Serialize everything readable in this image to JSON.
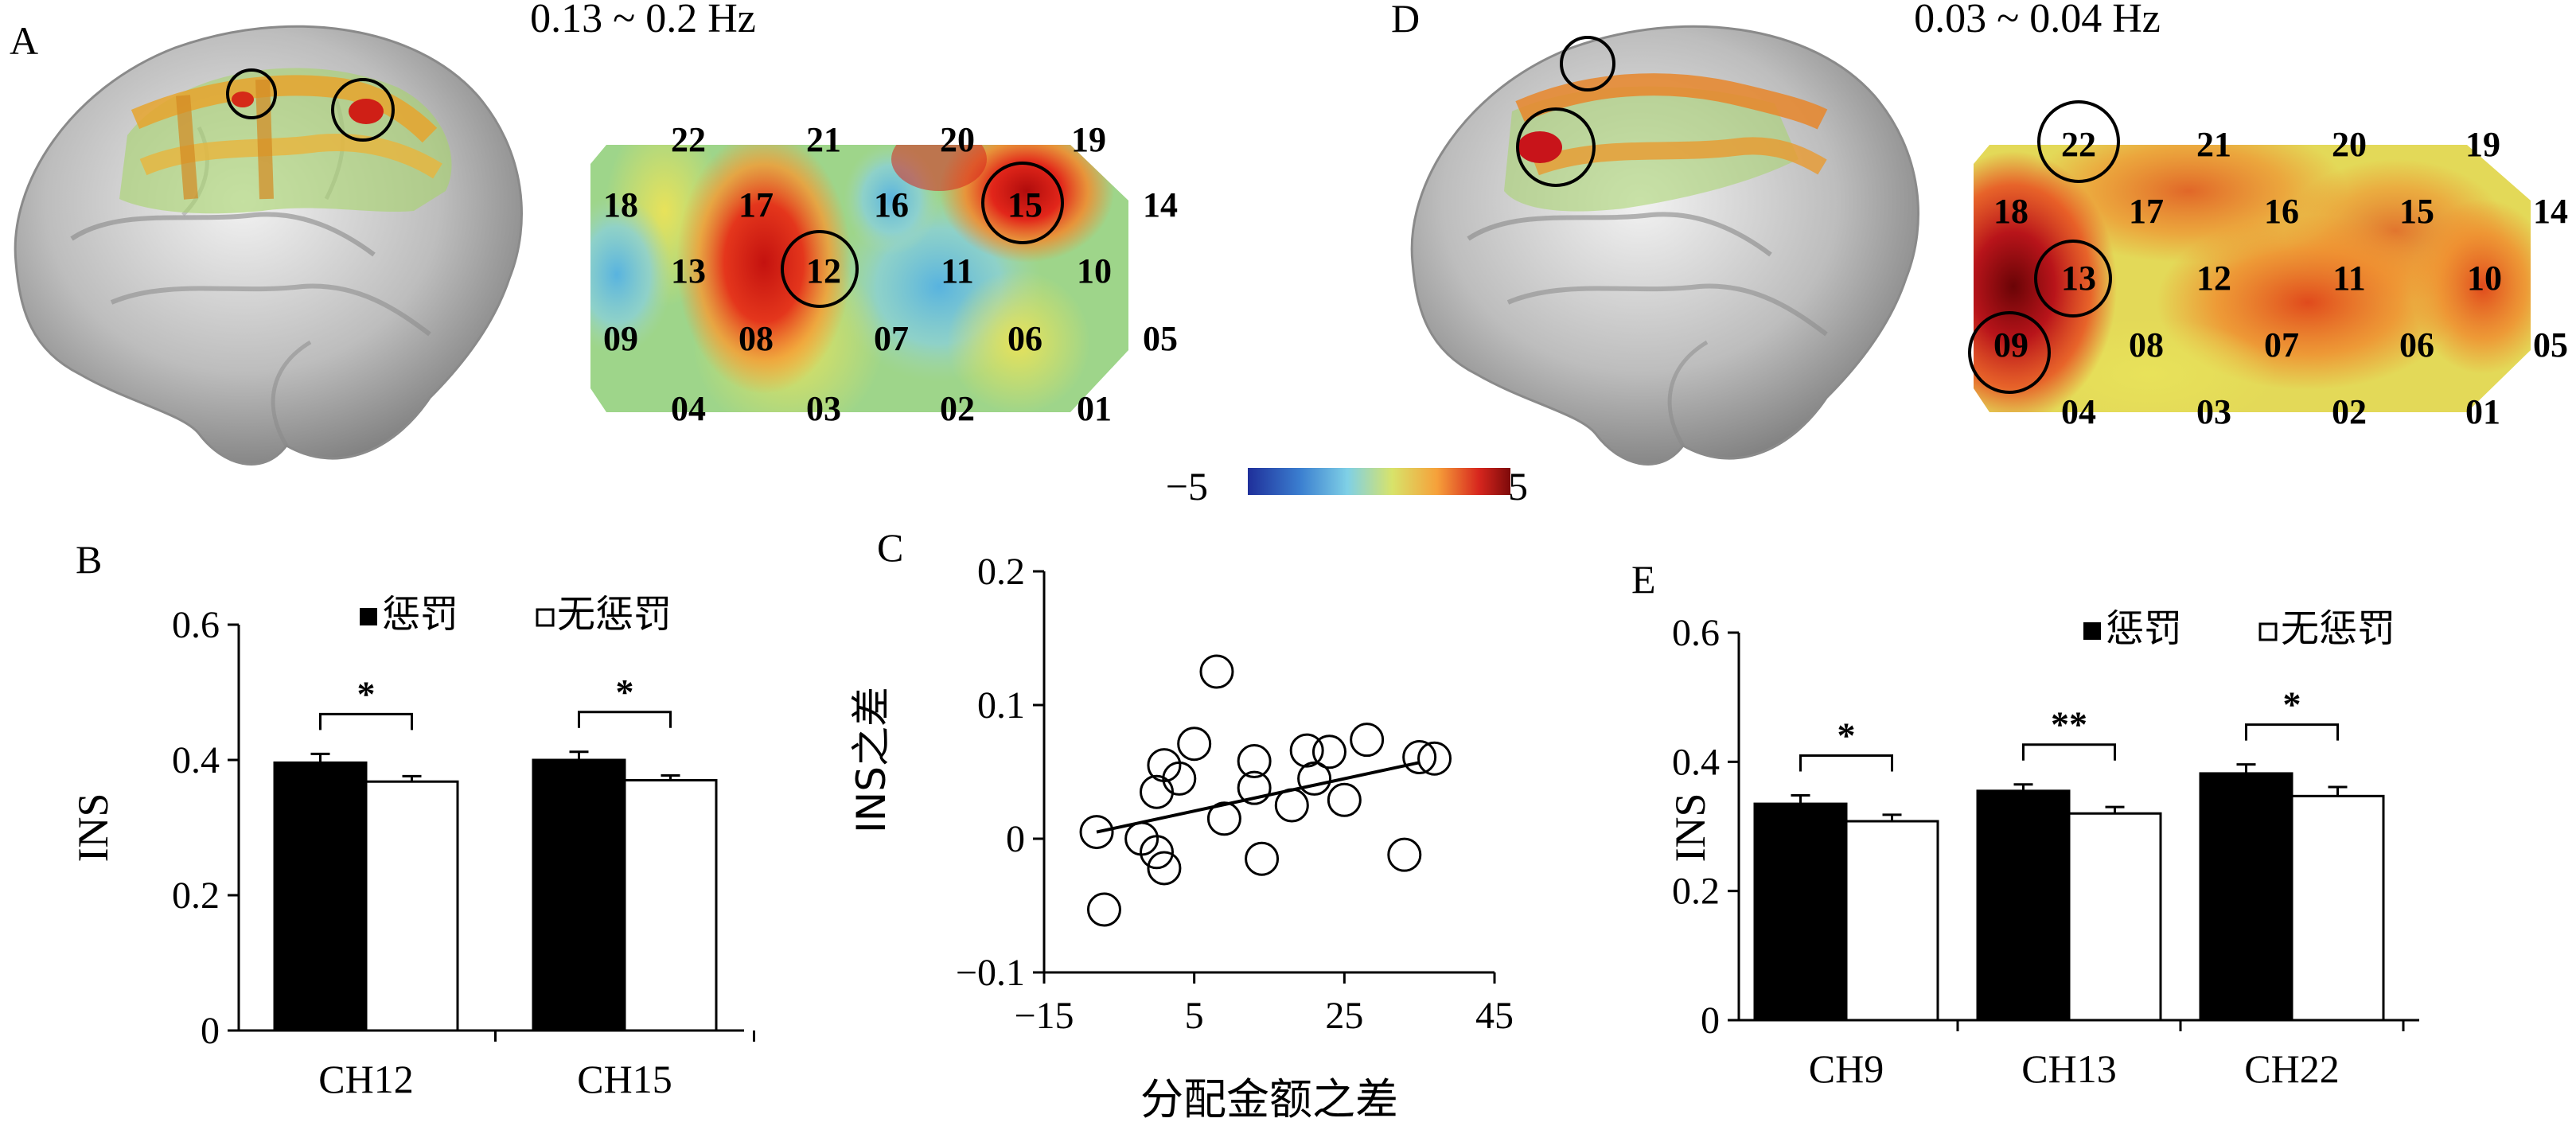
{
  "panel_labels": {
    "A": "A",
    "B": "B",
    "C": "C",
    "D": "D",
    "E": "E"
  },
  "freq_A": "0.13 ~ 0.2 Hz",
  "freq_D": "0.03 ~ 0.04 Hz",
  "colorbar": {
    "min": "−5",
    "max": "5",
    "colors": [
      "#1f2f9a",
      "#3b7fd0",
      "#7fd0e6",
      "#d8e36a",
      "#f6a13a",
      "#d7261e",
      "#7d0a0a"
    ]
  },
  "channels": [
    {
      "row": 1,
      "ids": [
        "22",
        "21",
        "20",
        "19"
      ]
    },
    {
      "row": 2,
      "ids": [
        "18",
        "17",
        "16",
        "15",
        "14"
      ]
    },
    {
      "row": 3,
      "ids": [
        "13",
        "12",
        "11",
        "10"
      ]
    },
    {
      "row": 4,
      "ids": [
        "09",
        "08",
        "07",
        "06",
        "05"
      ]
    },
    {
      "row": 5,
      "ids": [
        "04",
        "03",
        "02",
        "01"
      ]
    }
  ],
  "chart_data": [
    {
      "panel": "B",
      "type": "bar",
      "ylabel": "INS",
      "ylim": [
        0,
        0.6
      ],
      "yticks": [
        "0",
        "0.2",
        "0.4",
        "0.6"
      ],
      "categories": [
        "CH12",
        "CH15"
      ],
      "series": [
        {
          "name": "惩罚",
          "values": [
            0.396,
            0.4
          ],
          "errors": [
            0.013,
            0.012
          ]
        },
        {
          "name": "无惩罚",
          "values": [
            0.368,
            0.37
          ],
          "errors": [
            0.008,
            0.007
          ]
        }
      ],
      "significance": [
        "*",
        "*"
      ]
    },
    {
      "panel": "C",
      "type": "scatter",
      "xlabel": "分配金额之差",
      "ylabel": "INS之差",
      "xlim": [
        -15,
        45
      ],
      "ylim": [
        -0.1,
        0.2
      ],
      "xticks": [
        "−15",
        "5",
        "25",
        "45"
      ],
      "yticks": [
        "−0.1",
        "0",
        "0.1",
        "0.2"
      ],
      "points": [
        [
          -8,
          0.005
        ],
        [
          -7,
          -0.053
        ],
        [
          -2,
          0.0
        ],
        [
          0,
          0.035
        ],
        [
          0,
          -0.01
        ],
        [
          1,
          0.055
        ],
        [
          1,
          -0.022
        ],
        [
          3,
          0.045
        ],
        [
          5,
          0.071
        ],
        [
          8,
          0.125
        ],
        [
          9,
          0.015
        ],
        [
          13,
          0.058
        ],
        [
          13,
          0.038
        ],
        [
          14,
          -0.015
        ],
        [
          18,
          0.025
        ],
        [
          20,
          0.066
        ],
        [
          21,
          0.045
        ],
        [
          23,
          0.065
        ],
        [
          25,
          0.029
        ],
        [
          28,
          0.074
        ],
        [
          33,
          -0.012
        ],
        [
          35,
          0.061
        ],
        [
          37,
          0.06
        ]
      ],
      "fit": {
        "x": [
          -8,
          35
        ],
        "y": [
          0.005,
          0.057
        ]
      }
    },
    {
      "panel": "E",
      "type": "bar",
      "ylabel": "INS",
      "ylim": [
        0,
        0.6
      ],
      "yticks": [
        "0",
        "0.2",
        "0.4",
        "0.6"
      ],
      "categories": [
        "CH9",
        "CH13",
        "CH22"
      ],
      "series": [
        {
          "name": "惩罚",
          "values": [
            0.335,
            0.355,
            0.382
          ],
          "errors": [
            0.013,
            0.01,
            0.014
          ]
        },
        {
          "name": "无惩罚",
          "values": [
            0.308,
            0.32,
            0.347
          ],
          "errors": [
            0.01,
            0.01,
            0.014
          ]
        }
      ],
      "significance": [
        "*",
        "**",
        "*"
      ]
    }
  ]
}
